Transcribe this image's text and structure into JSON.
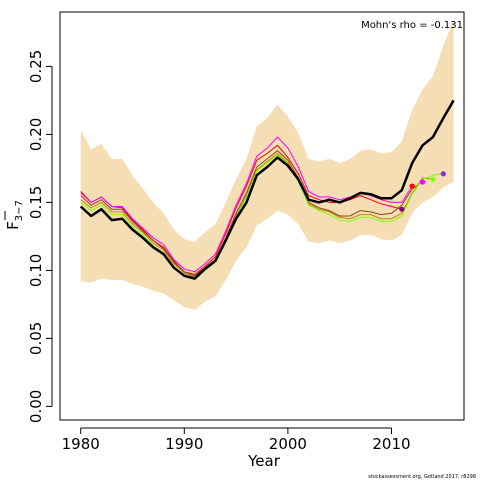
{
  "chart_data": {
    "type": "line",
    "xlabel": "Year",
    "ylabel_main": "F",
    "ylabel_sub": "3−7",
    "annotation": "Mohn's rho = -0.131",
    "credit": "stockassessment.org, Gotland  2017, r8298",
    "xlim": [
      1978,
      2017
    ],
    "ylim": [
      -0.01,
      0.29
    ],
    "x_ticks": [
      1980,
      1990,
      2000,
      2010
    ],
    "y_ticks": [
      0.0,
      0.05,
      0.1,
      0.15,
      0.2,
      0.25
    ],
    "y_tick_labels": [
      "0.00",
      "0.05",
      "0.10",
      "0.15",
      "0.20",
      "0.25"
    ],
    "colors": {
      "band": "#f5deb3",
      "main": "#000000",
      "peels": [
        "#ff0000",
        "#ff00ff",
        "#8b4513",
        "#b8860b",
        "#7fff00",
        "#8a2be2"
      ],
      "endpoints": [
        "#8b008b",
        "#ff0000",
        "#ff00ff",
        "#7fff00",
        "#8a2be2"
      ]
    },
    "series": [
      {
        "role": "band",
        "x": [
          1980,
          1981,
          1982,
          1983,
          1984,
          1985,
          1986,
          1987,
          1988,
          1989,
          1990,
          1991,
          1992,
          1993,
          1994,
          1995,
          1996,
          1997,
          1998,
          1999,
          2000,
          2001,
          2002,
          2003,
          2004,
          2005,
          2006,
          2007,
          2008,
          2009,
          2010,
          2011,
          2012,
          2013,
          2014,
          2015,
          2016
        ],
        "upper": [
          0.203,
          0.189,
          0.193,
          0.182,
          0.182,
          0.17,
          0.16,
          0.15,
          0.142,
          0.13,
          0.123,
          0.121,
          0.128,
          0.134,
          0.15,
          0.167,
          0.182,
          0.206,
          0.212,
          0.222,
          0.213,
          0.201,
          0.182,
          0.18,
          0.182,
          0.179,
          0.182,
          0.188,
          0.189,
          0.186,
          0.187,
          0.195,
          0.218,
          0.233,
          0.243,
          0.265,
          0.284
        ],
        "lower": [
          0.092,
          0.091,
          0.094,
          0.093,
          0.093,
          0.09,
          0.088,
          0.085,
          0.083,
          0.078,
          0.073,
          0.071,
          0.077,
          0.081,
          0.093,
          0.107,
          0.117,
          0.133,
          0.138,
          0.144,
          0.141,
          0.134,
          0.121,
          0.12,
          0.122,
          0.12,
          0.122,
          0.126,
          0.126,
          0.123,
          0.122,
          0.126,
          0.142,
          0.15,
          0.154,
          0.161,
          0.165
        ]
      },
      {
        "role": "main",
        "x": [
          1980,
          1981,
          1982,
          1983,
          1984,
          1985,
          1986,
          1987,
          1988,
          1989,
          1990,
          1991,
          1992,
          1993,
          1994,
          1995,
          1996,
          1997,
          1998,
          1999,
          2000,
          2001,
          2002,
          2003,
          2004,
          2005,
          2006,
          2007,
          2008,
          2009,
          2010,
          2011,
          2012,
          2013,
          2014,
          2015,
          2016
        ],
        "y": [
          0.147,
          0.14,
          0.145,
          0.137,
          0.138,
          0.13,
          0.124,
          0.117,
          0.112,
          0.102,
          0.096,
          0.094,
          0.101,
          0.107,
          0.122,
          0.138,
          0.15,
          0.17,
          0.176,
          0.183,
          0.177,
          0.167,
          0.152,
          0.15,
          0.152,
          0.15,
          0.153,
          0.157,
          0.156,
          0.153,
          0.153,
          0.159,
          0.179,
          0.192,
          0.198,
          0.212,
          0.225
        ]
      },
      {
        "role": "peel",
        "x": [
          1980,
          1981,
          1982,
          1983,
          1984,
          1985,
          1986,
          1987,
          1988,
          1989,
          1990,
          1991,
          1992,
          1993,
          1994,
          1995,
          1996,
          1997,
          1998,
          1999,
          2000,
          2001,
          2002,
          2003,
          2004,
          2005,
          2006,
          2007,
          2008,
          2009,
          2010,
          2011
        ],
        "y": [
          0.158,
          0.15,
          0.154,
          0.147,
          0.146,
          0.137,
          0.13,
          0.122,
          0.116,
          0.106,
          0.099,
          0.097,
          0.103,
          0.11,
          0.127,
          0.146,
          0.162,
          0.181,
          0.186,
          0.192,
          0.183,
          0.171,
          0.155,
          0.152,
          0.15,
          0.15,
          0.152,
          0.155,
          0.152,
          0.149,
          0.147,
          0.145
        ]
      },
      {
        "role": "peel",
        "x": [
          1980,
          1981,
          1982,
          1983,
          1984,
          1985,
          1986,
          1987,
          1988,
          1989,
          1990,
          1991,
          1992,
          1993,
          1994,
          1995,
          1996,
          1997,
          1998,
          1999,
          2000,
          2001,
          2002,
          2003,
          2004,
          2005,
          2006,
          2007,
          2008,
          2009,
          2010,
          2011,
          2012
        ],
        "y": [
          0.157,
          0.15,
          0.154,
          0.147,
          0.147,
          0.138,
          0.131,
          0.124,
          0.119,
          0.108,
          0.101,
          0.099,
          0.105,
          0.112,
          0.129,
          0.148,
          0.164,
          0.184,
          0.19,
          0.198,
          0.19,
          0.176,
          0.158,
          0.154,
          0.154,
          0.152,
          0.154,
          0.157,
          0.155,
          0.152,
          0.15,
          0.15,
          0.162
        ]
      },
      {
        "role": "peel",
        "x": [
          1980,
          1981,
          1982,
          1983,
          1984,
          1985,
          1986,
          1987,
          1988,
          1989,
          1990,
          1991,
          1992,
          1993,
          1994,
          1995,
          1996,
          1997,
          1998,
          1999,
          2000,
          2001,
          2002,
          2003,
          2004,
          2005,
          2006,
          2007,
          2008,
          2009,
          2010,
          2011,
          2012,
          2013
        ],
        "y": [
          0.155,
          0.148,
          0.152,
          0.145,
          0.145,
          0.136,
          0.129,
          0.122,
          0.117,
          0.107,
          0.099,
          0.096,
          0.102,
          0.108,
          0.124,
          0.142,
          0.157,
          0.176,
          0.182,
          0.188,
          0.181,
          0.168,
          0.15,
          0.146,
          0.144,
          0.14,
          0.14,
          0.144,
          0.143,
          0.141,
          0.142,
          0.148,
          0.16,
          0.165
        ]
      },
      {
        "role": "peel",
        "x": [
          1980,
          1981,
          1982,
          1983,
          1984,
          1985,
          1986,
          1987,
          1988,
          1989,
          1990,
          1991,
          1992,
          1993,
          1994,
          1995,
          1996,
          1997,
          1998,
          1999,
          2000,
          2001,
          2002,
          2003,
          2004,
          2005,
          2006,
          2007,
          2008,
          2009,
          2010,
          2011,
          2012,
          2013,
          2014
        ],
        "y": [
          0.152,
          0.146,
          0.15,
          0.143,
          0.143,
          0.134,
          0.128,
          0.12,
          0.115,
          0.105,
          0.098,
          0.095,
          0.101,
          0.107,
          0.123,
          0.14,
          0.155,
          0.174,
          0.18,
          0.186,
          0.179,
          0.166,
          0.149,
          0.145,
          0.143,
          0.139,
          0.138,
          0.141,
          0.141,
          0.138,
          0.138,
          0.142,
          0.157,
          0.168,
          0.167
        ]
      },
      {
        "role": "peel",
        "x": [
          1980,
          1981,
          1982,
          1983,
          1984,
          1985,
          1986,
          1987,
          1988,
          1989,
          1990,
          1991,
          1992,
          1993,
          1994,
          1995,
          1996,
          1997,
          1998,
          1999,
          2000,
          2001,
          2002,
          2003,
          2004,
          2005,
          2006,
          2007,
          2008,
          2009,
          2010,
          2011,
          2012,
          2013,
          2014,
          2015
        ],
        "y": [
          0.15,
          0.144,
          0.148,
          0.141,
          0.141,
          0.132,
          0.126,
          0.118,
          0.113,
          0.103,
          0.096,
          0.093,
          0.1,
          0.106,
          0.122,
          0.139,
          0.154,
          0.173,
          0.179,
          0.185,
          0.178,
          0.165,
          0.148,
          0.144,
          0.141,
          0.137,
          0.136,
          0.139,
          0.139,
          0.136,
          0.136,
          0.14,
          0.156,
          0.167,
          0.17,
          0.171
        ]
      }
    ],
    "endpoint_markers": [
      {
        "x": 2011,
        "y": 0.145
      },
      {
        "x": 2012,
        "y": 0.162
      },
      {
        "x": 2013,
        "y": 0.165
      },
      {
        "x": 2014,
        "y": 0.167
      },
      {
        "x": 2015,
        "y": 0.171
      }
    ]
  }
}
